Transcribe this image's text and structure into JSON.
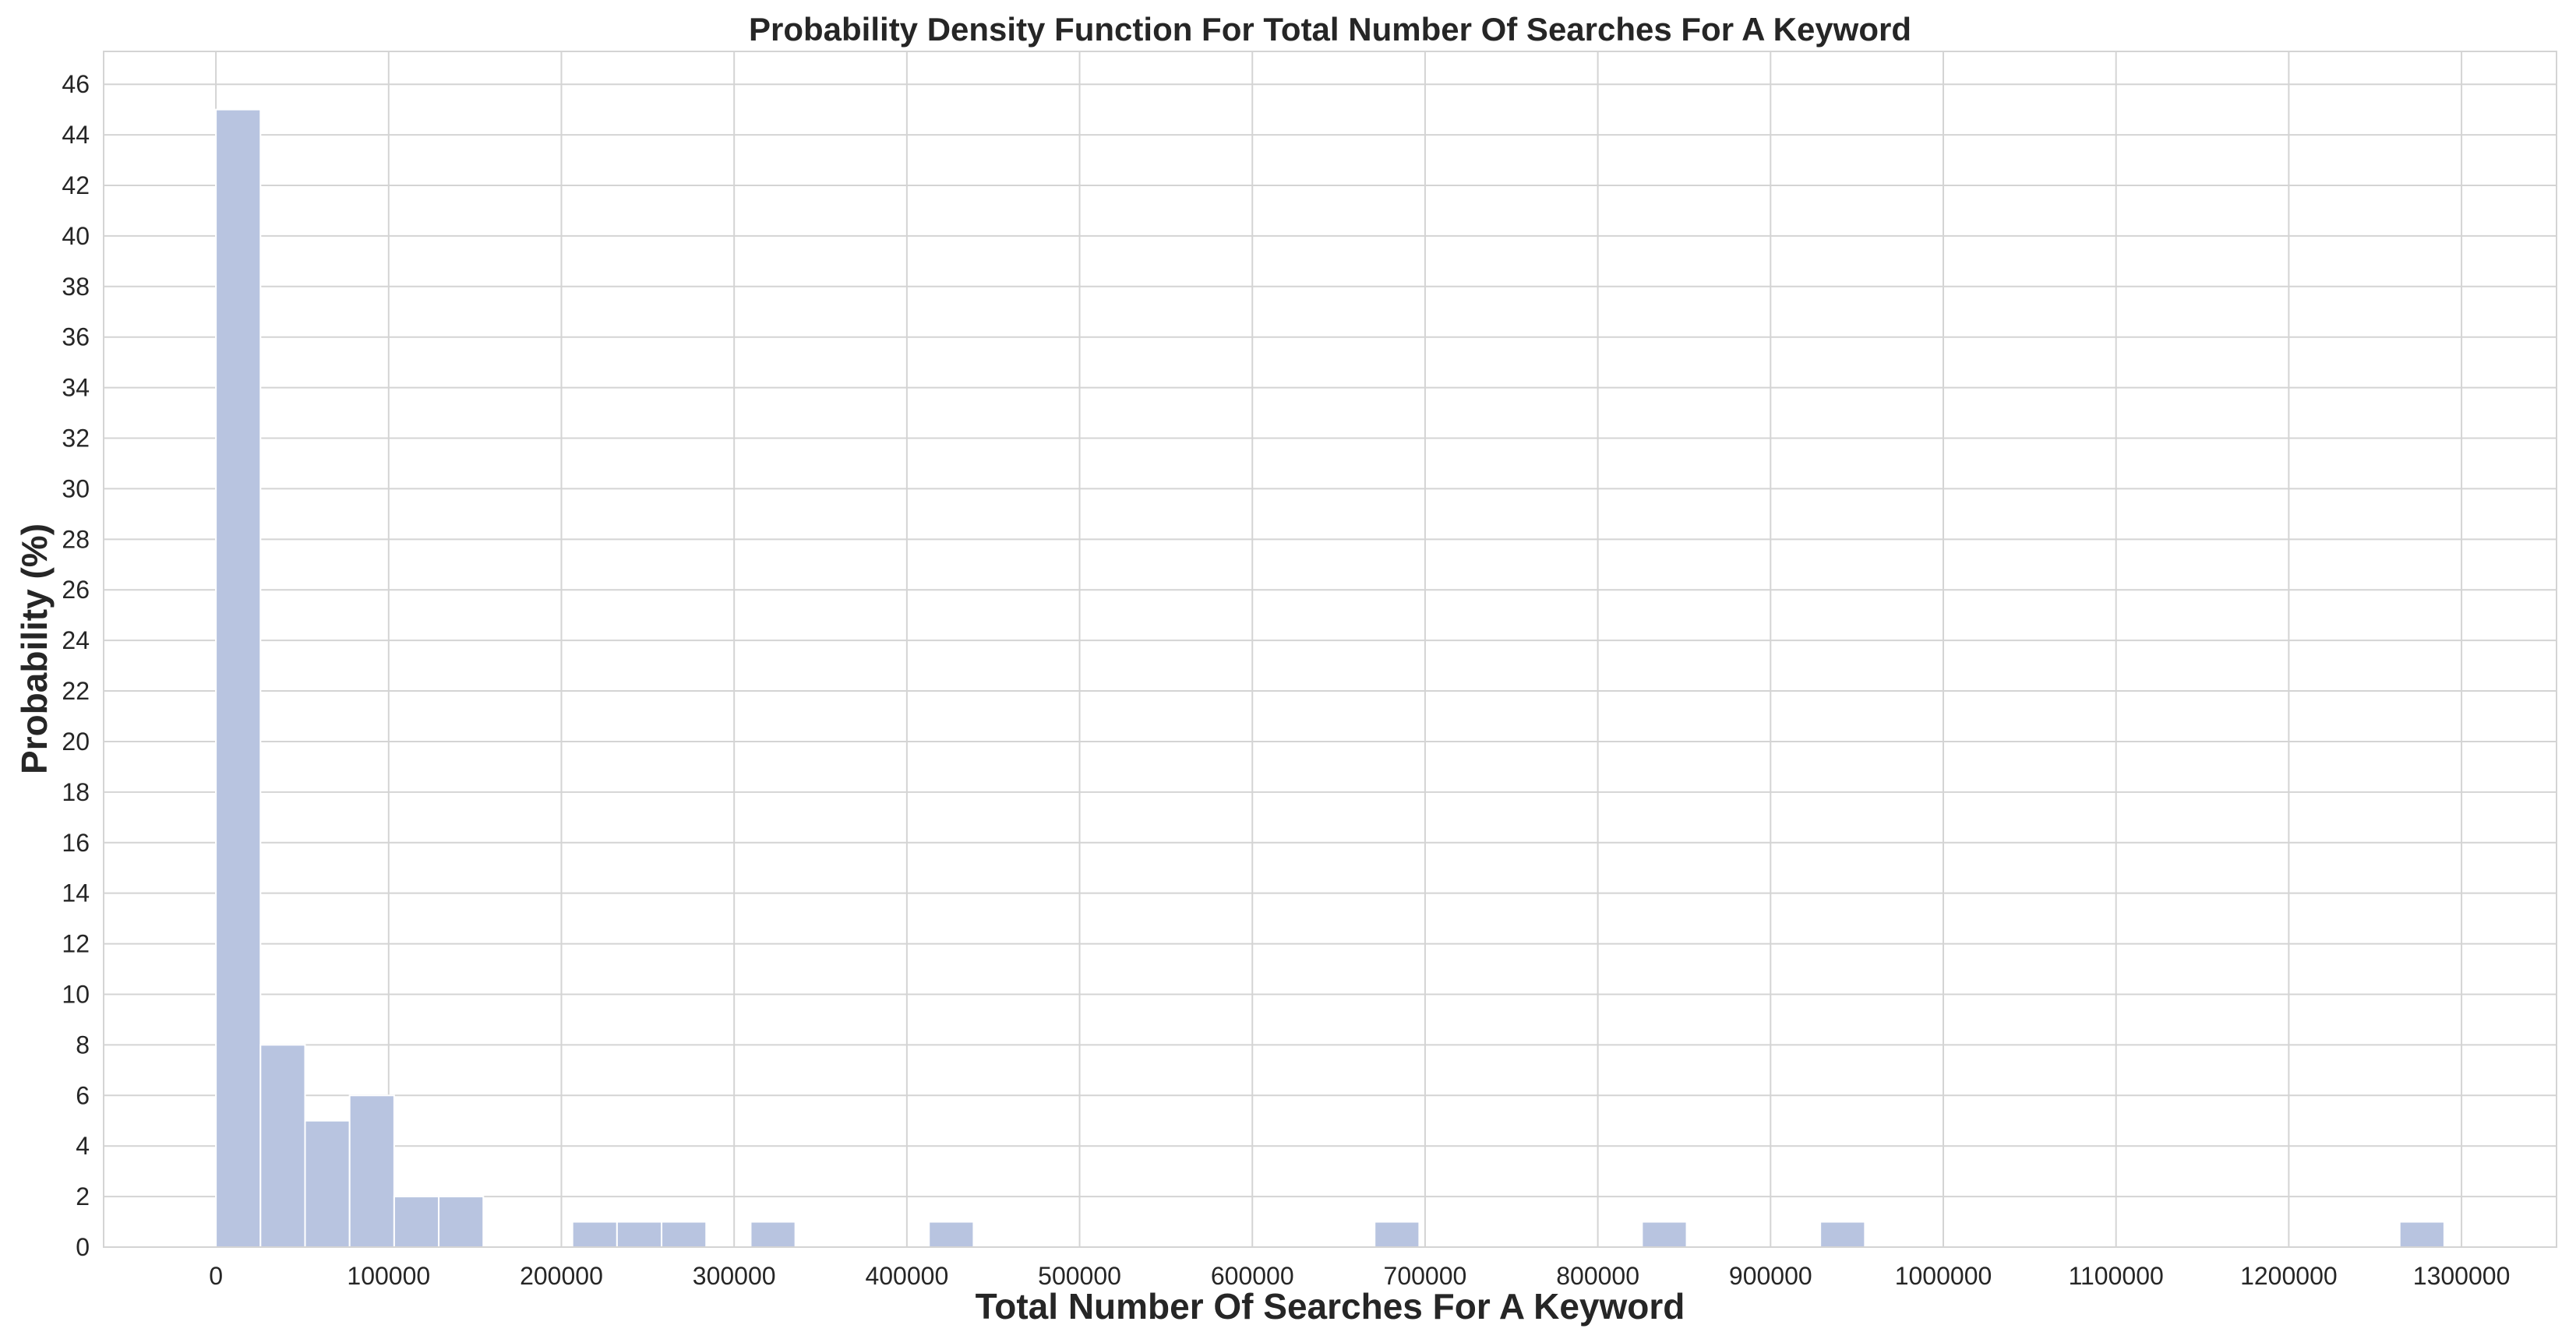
{
  "chart_data": {
    "type": "bar",
    "title": "Probability Density Function For Total Number Of Searches For A Keyword",
    "xlabel": "Total Number Of Searches For A Keyword",
    "ylabel": "Probability (%)",
    "xlim": [
      -65000,
      1355000
    ],
    "ylim": [
      0,
      47.3
    ],
    "x_ticks": [
      0,
      100000,
      200000,
      300000,
      400000,
      500000,
      600000,
      700000,
      800000,
      900000,
      1000000,
      1100000,
      1200000,
      1300000
    ],
    "y_ticks": [
      0,
      2,
      4,
      6,
      8,
      10,
      12,
      14,
      16,
      18,
      20,
      22,
      24,
      26,
      28,
      30,
      32,
      34,
      36,
      38,
      40,
      42,
      44,
      46
    ],
    "grid": true,
    "bar_color": "#b8c4e0",
    "bins": [
      {
        "x0": 0,
        "x1": 25800,
        "value": 45
      },
      {
        "x0": 25800,
        "x1": 51600,
        "value": 8
      },
      {
        "x0": 51600,
        "x1": 77400,
        "value": 5
      },
      {
        "x0": 77400,
        "x1": 103200,
        "value": 6
      },
      {
        "x0": 103200,
        "x1": 129000,
        "value": 2
      },
      {
        "x0": 129000,
        "x1": 154800,
        "value": 2
      },
      {
        "x0": 206400,
        "x1": 232200,
        "value": 1
      },
      {
        "x0": 232200,
        "x1": 258000,
        "value": 1
      },
      {
        "x0": 258000,
        "x1": 283800,
        "value": 1
      },
      {
        "x0": 309600,
        "x1": 335400,
        "value": 1
      },
      {
        "x0": 412800,
        "x1": 438600,
        "value": 1
      },
      {
        "x0": 670800,
        "x1": 696600,
        "value": 1
      },
      {
        "x0": 825600,
        "x1": 851400,
        "value": 1
      },
      {
        "x0": 928800,
        "x1": 954600,
        "value": 1
      },
      {
        "x0": 1264200,
        "x1": 1290000,
        "value": 1
      }
    ]
  }
}
